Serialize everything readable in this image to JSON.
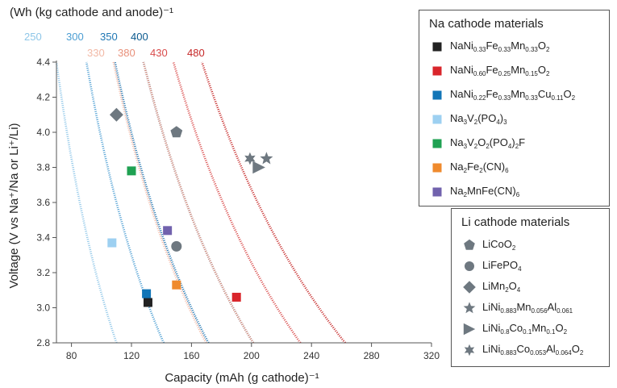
{
  "chart_data": {
    "type": "scatter",
    "title": "",
    "xlabel": "Capacity (mAh (g cathode)⁻¹",
    "ylabel": "Voltage (V vs Na⁺/Na or Li⁺/Li)",
    "xlim": [
      70,
      320
    ],
    "ylim": [
      2.8,
      4.4
    ],
    "x_ticks": [
      "80",
      "120",
      "160",
      "200",
      "240",
      "280",
      "320"
    ],
    "y_ticks": [
      "2.8",
      "3.0",
      "3.2",
      "3.4",
      "3.6",
      "3.8",
      "4.0",
      "4.2",
      "4.4"
    ],
    "grid": false,
    "energy_density_title": "(Wh (kg cathode and anode)⁻¹",
    "energy_density_lines": [
      {
        "label": "250",
        "value": 250,
        "color": "#8ec6e8"
      },
      {
        "label": "300",
        "value": 300,
        "color": "#4c9ed3"
      },
      {
        "label": "350",
        "value": 350,
        "color": "#1f77b4"
      },
      {
        "label": "400",
        "value": 400,
        "color": "#0b5a8f"
      },
      {
        "label": "330",
        "value": 330,
        "color": "#f2b9a6"
      },
      {
        "label": "380",
        "value": 380,
        "color": "#e8907a"
      },
      {
        "label": "430",
        "value": 430,
        "color": "#d94b4b"
      },
      {
        "label": "480",
        "value": 480,
        "color": "#c62828"
      }
    ],
    "na_legend_title": "Na cathode materials",
    "li_legend_title": "Li cathode materials",
    "series": [
      {
        "name": "NaNi0.33Fe0.33Mn0.33O2",
        "group": "Na",
        "marker": "square",
        "color": "#222222",
        "points": [
          [
            131,
            3.03
          ]
        ]
      },
      {
        "name": "NaNi0.60Fe0.25Mn0.15O2",
        "group": "Na",
        "marker": "square",
        "color": "#d9252b",
        "points": [
          [
            190,
            3.06
          ]
        ]
      },
      {
        "name": "NaNi0.22Fe0.33Mn0.33Cu0.11O2",
        "group": "Na",
        "marker": "square",
        "color": "#1175b7",
        "points": [
          [
            130,
            3.08
          ]
        ]
      },
      {
        "name": "Na3V2(PO4)3",
        "group": "Na",
        "marker": "square",
        "color": "#9dd0f1",
        "points": [
          [
            107,
            3.37
          ]
        ]
      },
      {
        "name": "Na3V2O2(PO4)2F",
        "group": "Na",
        "marker": "square",
        "color": "#1fa152",
        "points": [
          [
            120,
            3.78
          ]
        ]
      },
      {
        "name": "Na2Fe2(CN)6",
        "group": "Na",
        "marker": "square",
        "color": "#ef8a2d",
        "points": [
          [
            150,
            3.13
          ]
        ]
      },
      {
        "name": "Na2MnFe(CN)6",
        "group": "Na",
        "marker": "square",
        "color": "#7162ad",
        "points": [
          [
            144,
            3.44
          ]
        ]
      },
      {
        "name": "LiCoO2",
        "group": "Li",
        "marker": "pentagon",
        "color": "#6e7880",
        "points": [
          [
            150,
            4.0
          ]
        ]
      },
      {
        "name": "LiFePO4",
        "group": "Li",
        "marker": "circle",
        "color": "#6e7880",
        "points": [
          [
            150,
            3.35
          ]
        ]
      },
      {
        "name": "LiMn2O4",
        "group": "Li",
        "marker": "diamond",
        "color": "#6e7880",
        "points": [
          [
            110,
            4.1
          ]
        ]
      },
      {
        "name": "LiNi0.883Mn0.056Al0.061O2",
        "group": "Li",
        "marker": "star5",
        "color": "#6e7880",
        "points": [
          [
            210,
            3.85
          ]
        ]
      },
      {
        "name": "LiNi0.8Co0.1Mn0.1O2",
        "group": "Li",
        "marker": "triangle-right",
        "color": "#6e7880",
        "points": [
          [
            205,
            3.8
          ]
        ]
      },
      {
        "name": "LiNi0.883Co0.053Al0.064O2",
        "group": "Li",
        "marker": "star6",
        "color": "#6e7880",
        "points": [
          [
            199,
            3.85
          ]
        ]
      }
    ]
  },
  "legend_display": {
    "na": [
      {
        "parts": [
          [
            "NaNi",
            ""
          ],
          [
            "0.33",
            "sub"
          ],
          [
            "Fe",
            ""
          ],
          [
            "0.33",
            "sub"
          ],
          [
            "Mn",
            ""
          ],
          [
            "0.33",
            "sub"
          ],
          [
            "O",
            ""
          ],
          [
            "2",
            "sub"
          ]
        ]
      },
      {
        "parts": [
          [
            "NaNi",
            ""
          ],
          [
            "0.60",
            "sub"
          ],
          [
            "Fe",
            ""
          ],
          [
            "0.25",
            "sub"
          ],
          [
            "Mn",
            ""
          ],
          [
            "0.15",
            "sub"
          ],
          [
            "O",
            ""
          ],
          [
            "2",
            "sub"
          ]
        ]
      },
      {
        "parts": [
          [
            "NaNi",
            ""
          ],
          [
            "0.22",
            "sub"
          ],
          [
            "Fe",
            ""
          ],
          [
            "0.33",
            "sub"
          ],
          [
            "Mn",
            ""
          ],
          [
            "0.33",
            "sub"
          ],
          [
            "Cu",
            ""
          ],
          [
            "0.11",
            "sub"
          ],
          [
            "O",
            ""
          ],
          [
            "2",
            "sub"
          ]
        ]
      },
      {
        "parts": [
          [
            "Na",
            ""
          ],
          [
            "3",
            "sub"
          ],
          [
            "V",
            ""
          ],
          [
            "2",
            "sub"
          ],
          [
            "(PO",
            ""
          ],
          [
            "4",
            "sub"
          ],
          [
            ")",
            ""
          ],
          [
            "3",
            "sub"
          ]
        ]
      },
      {
        "parts": [
          [
            "Na",
            ""
          ],
          [
            "3",
            "sub"
          ],
          [
            "V",
            ""
          ],
          [
            "2",
            "sub"
          ],
          [
            "O",
            ""
          ],
          [
            "2",
            "sub"
          ],
          [
            "(PO",
            ""
          ],
          [
            "4",
            "sub"
          ],
          [
            ")",
            ""
          ],
          [
            "2",
            "sub"
          ],
          [
            "F",
            ""
          ]
        ]
      },
      {
        "parts": [
          [
            "Na",
            ""
          ],
          [
            "2",
            "sub"
          ],
          [
            "Fe",
            ""
          ],
          [
            "2",
            "sub"
          ],
          [
            "(CN)",
            ""
          ],
          [
            "6",
            "sub"
          ]
        ]
      },
      {
        "parts": [
          [
            "Na",
            ""
          ],
          [
            "2",
            "sub"
          ],
          [
            "MnFe(CN)",
            ""
          ],
          [
            "6",
            "sub"
          ]
        ]
      }
    ],
    "li": [
      {
        "parts": [
          [
            "LiCoO",
            ""
          ],
          [
            "2",
            "sub"
          ]
        ]
      },
      {
        "parts": [
          [
            "LiFePO",
            ""
          ],
          [
            "4",
            "sub"
          ]
        ]
      },
      {
        "parts": [
          [
            "LiMn",
            ""
          ],
          [
            "2",
            "sub"
          ],
          [
            "O",
            ""
          ],
          [
            "4",
            "sub"
          ]
        ]
      },
      {
        "parts": [
          [
            "LiNi",
            ""
          ],
          [
            "0.883",
            "sub"
          ],
          [
            "Mn",
            ""
          ],
          [
            "0.056",
            "sub"
          ],
          [
            "Al",
            ""
          ],
          [
            "0.061",
            "sub"
          ]
        ]
      },
      {
        "parts": [
          [
            "LiNi",
            ""
          ],
          [
            "0.8",
            "sub"
          ],
          [
            "Co",
            ""
          ],
          [
            "0.1",
            "sub"
          ],
          [
            "Mn",
            ""
          ],
          [
            "0.1",
            "sub"
          ],
          [
            "O",
            ""
          ],
          [
            "2",
            "sub"
          ]
        ]
      },
      {
        "parts": [
          [
            "LiNi",
            ""
          ],
          [
            "0.883",
            "sub"
          ],
          [
            "Co",
            ""
          ],
          [
            "0.053",
            "sub"
          ],
          [
            "Al",
            ""
          ],
          [
            "0.064",
            "sub"
          ],
          [
            "O",
            ""
          ],
          [
            "2",
            "sub"
          ]
        ]
      }
    ]
  }
}
